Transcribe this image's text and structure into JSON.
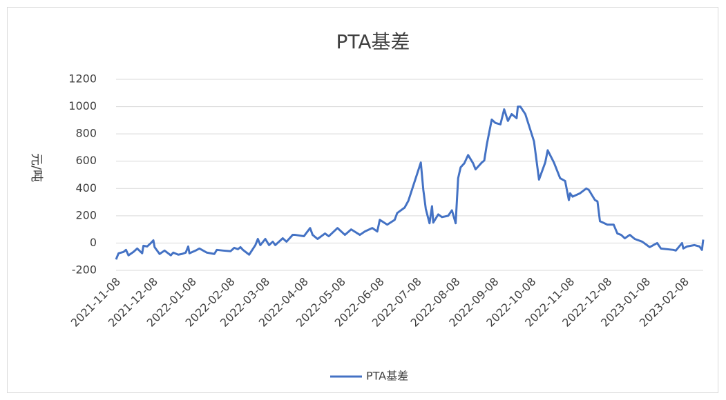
{
  "chart_data": {
    "type": "line",
    "title": "PTA基差",
    "y_label": "元/吨",
    "x": [
      "2021-11-08",
      "2021-11-10",
      "2021-11-14",
      "2021-11-16",
      "2021-11-18",
      "2021-11-22",
      "2021-11-25",
      "2021-11-29",
      "2021-11-30",
      "2021-12-03",
      "2021-12-06",
      "2021-12-08",
      "2021-12-09",
      "2021-12-13",
      "2021-12-17",
      "2021-12-22",
      "2021-12-24",
      "2021-12-28",
      "2021-12-31",
      "2022-01-03",
      "2022-01-05",
      "2022-01-06",
      "2022-01-11",
      "2022-01-14",
      "2022-01-17",
      "2022-01-20",
      "2022-01-26",
      "2022-01-28",
      "2022-02-02",
      "2022-02-08",
      "2022-02-11",
      "2022-02-14",
      "2022-02-16",
      "2022-02-18",
      "2022-02-23",
      "2022-02-28",
      "2022-03-02",
      "2022-03-04",
      "2022-03-08",
      "2022-03-11",
      "2022-03-14",
      "2022-03-16",
      "2022-03-22",
      "2022-03-25",
      "2022-03-30",
      "2022-04-01",
      "2022-04-08",
      "2022-04-13",
      "2022-04-15",
      "2022-04-19",
      "2022-04-25",
      "2022-04-28",
      "2022-05-05",
      "2022-05-11",
      "2022-05-16",
      "2022-05-23",
      "2022-05-27",
      "2022-06-02",
      "2022-06-06",
      "2022-06-08",
      "2022-06-14",
      "2022-06-20",
      "2022-06-22",
      "2022-06-28",
      "2022-07-01",
      "2022-07-06",
      "2022-07-11",
      "2022-07-13",
      "2022-07-15",
      "2022-07-18",
      "2022-07-20",
      "2022-07-21",
      "2022-07-25",
      "2022-07-28",
      "2022-08-02",
      "2022-08-05",
      "2022-08-08",
      "2022-08-10",
      "2022-08-12",
      "2022-08-15",
      "2022-08-18",
      "2022-08-22",
      "2022-08-24",
      "2022-08-29",
      "2022-08-31",
      "2022-09-02",
      "2022-09-06",
      "2022-09-09",
      "2022-09-13",
      "2022-09-16",
      "2022-09-19",
      "2022-09-22",
      "2022-09-26",
      "2022-09-27",
      "2022-09-29",
      "2022-10-03",
      "2022-10-10",
      "2022-10-14",
      "2022-10-19",
      "2022-10-21",
      "2022-10-26",
      "2022-10-31",
      "2022-11-04",
      "2022-11-07",
      "2022-11-08",
      "2022-11-10",
      "2022-11-16",
      "2022-11-21",
      "2022-11-23",
      "2022-11-28",
      "2022-11-30",
      "2022-12-02",
      "2022-12-08",
      "2022-12-13",
      "2022-12-16",
      "2022-12-19",
      "2022-12-22",
      "2022-12-26",
      "2022-12-30",
      "2023-01-05",
      "2023-01-11",
      "2023-01-17",
      "2023-01-20",
      "2023-01-30",
      "2023-02-01",
      "2023-02-06",
      "2023-02-07",
      "2023-02-10",
      "2023-02-16",
      "2023-02-20",
      "2023-02-22",
      "2023-02-23"
    ],
    "series": [
      {
        "name": "PTA基差",
        "color": "#4472c4",
        "values": [
          -120,
          -75,
          -65,
          -50,
          -90,
          -65,
          -40,
          -75,
          -20,
          -25,
          0,
          20,
          -30,
          -80,
          -55,
          -90,
          -70,
          -85,
          -80,
          -70,
          -25,
          -75,
          -55,
          -40,
          -55,
          -70,
          -80,
          -50,
          -55,
          -60,
          -35,
          -45,
          -30,
          -50,
          -85,
          -15,
          30,
          -15,
          30,
          -15,
          10,
          -15,
          35,
          10,
          60,
          60,
          50,
          110,
          60,
          30,
          70,
          50,
          110,
          60,
          100,
          60,
          85,
          110,
          85,
          170,
          135,
          170,
          220,
          260,
          310,
          450,
          590,
          390,
          250,
          145,
          270,
          150,
          210,
          190,
          200,
          240,
          145,
          475,
          555,
          585,
          645,
          585,
          540,
          590,
          605,
          720,
          905,
          880,
          870,
          980,
          895,
          945,
          915,
          1000,
          1000,
          945,
          745,
          465,
          590,
          680,
          590,
          475,
          455,
          315,
          365,
          340,
          365,
          400,
          390,
          315,
          305,
          160,
          135,
          135,
          70,
          60,
          35,
          60,
          30,
          10,
          -30,
          0,
          -40,
          -50,
          -55,
          0,
          -40,
          -25,
          -15,
          -25,
          -50,
          25
        ]
      }
    ],
    "xlim": [
      "2021-11-08",
      "2023-02-23"
    ],
    "xticks": [
      "2021-11-08",
      "2021-12-08",
      "2022-01-08",
      "2022-02-08",
      "2022-03-08",
      "2022-04-08",
      "2022-05-08",
      "2022-06-08",
      "2022-07-08",
      "2022-08-08",
      "2022-09-08",
      "2022-10-08",
      "2022-11-08",
      "2022-12-08",
      "2023-01-08",
      "2023-02-08"
    ],
    "ylim": [
      -200,
      1200
    ],
    "yticks": [
      -200,
      0,
      200,
      400,
      600,
      800,
      1000,
      1200
    ],
    "grid": true,
    "legend": "bottom"
  }
}
